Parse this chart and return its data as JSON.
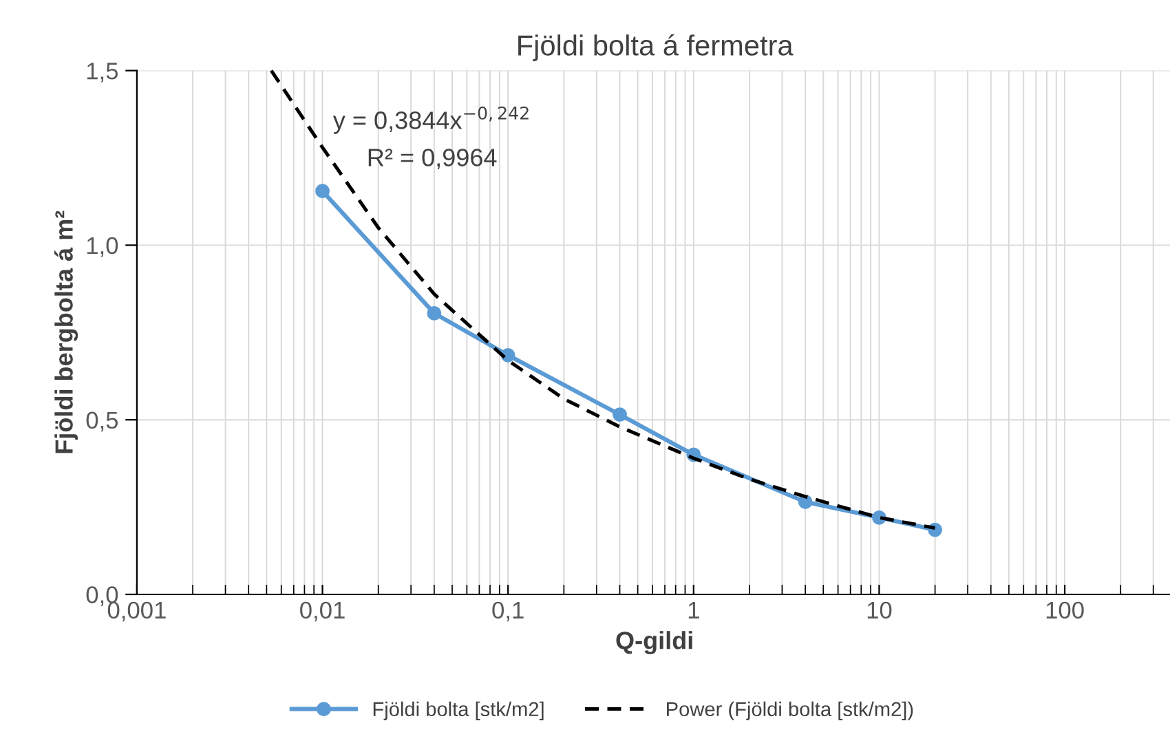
{
  "chart_data": {
    "type": "line",
    "title": "Fjöldi bolta á fermetra",
    "xlabel": "Q-gildi",
    "ylabel": "Fjöldi bergbolta á m²",
    "series": [
      {
        "name": "Fjöldi bolta [stk/m2]",
        "color": "#5b9bd5",
        "marker": "circle",
        "line_style": "solid",
        "x": [
          0.01,
          0.04,
          0.1,
          0.4,
          1,
          4,
          10,
          20
        ],
        "values": [
          1.155,
          0.805,
          0.685,
          0.515,
          0.4,
          0.265,
          0.22,
          0.185
        ]
      },
      {
        "name": "Power (Fjöldi bolta [stk/m2])",
        "color": "#000000",
        "marker": "none",
        "line_style": "dashed",
        "x": [
          0.0053,
          0.01,
          0.02,
          0.04,
          0.1,
          0.2,
          0.4,
          1,
          2,
          4,
          10,
          20
        ],
        "values": [
          1.5,
          1.28,
          1.05,
          0.86,
          0.67,
          0.56,
          0.48,
          0.39,
          0.33,
          0.28,
          0.22,
          0.19
        ]
      }
    ],
    "log": "x",
    "xlim": [
      0.001,
      380
    ],
    "ylim": [
      0,
      1.5
    ],
    "xticks": [
      {
        "value": 0.001,
        "label": "0,001"
      },
      {
        "value": 0.01,
        "label": "0,01"
      },
      {
        "value": 0.1,
        "label": "0,1"
      },
      {
        "value": 1,
        "label": "1"
      },
      {
        "value": 10,
        "label": "10"
      },
      {
        "value": 100,
        "label": "100"
      }
    ],
    "yticks": [
      {
        "value": 0,
        "label": "0,0"
      },
      {
        "value": 0.5,
        "label": "0,5"
      },
      {
        "value": 1,
        "label": "1,0"
      },
      {
        "value": 1.5,
        "label": "1,5"
      }
    ],
    "grid": true,
    "legend": "bottom",
    "annotations": [
      "y = 0,3844x$^{−0,242}$",
      "R² = 0,9964"
    ]
  }
}
